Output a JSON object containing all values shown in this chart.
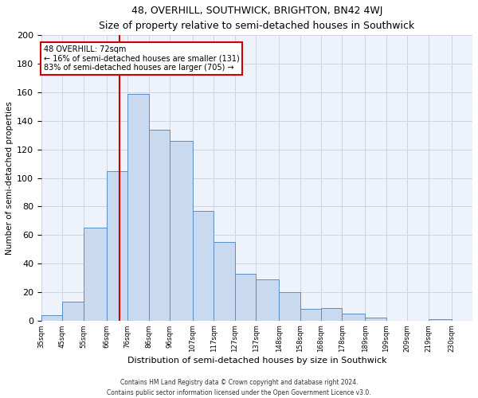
{
  "title": "48, OVERHILL, SOUTHWICK, BRIGHTON, BN42 4WJ",
  "subtitle": "Size of property relative to semi-detached houses in Southwick",
  "xlabel": "Distribution of semi-detached houses by size in Southwick",
  "ylabel": "Number of semi-detached properties",
  "footer1": "Contains HM Land Registry data © Crown copyright and database right 2024.",
  "footer2": "Contains public sector information licensed under the Open Government Licence v3.0.",
  "annotation_title": "48 OVERHILL: 72sqm",
  "annotation_line1": "← 16% of semi-detached houses are smaller (131)",
  "annotation_line2": "83% of semi-detached houses are larger (705) →",
  "property_size": 72,
  "bin_edges": [
    35,
    45,
    55,
    66,
    76,
    86,
    96,
    107,
    117,
    127,
    137,
    148,
    158,
    168,
    178,
    189,
    199,
    209,
    219,
    230,
    240
  ],
  "bar_heights": [
    4,
    13,
    65,
    105,
    159,
    134,
    126,
    77,
    55,
    33,
    29,
    20,
    8,
    9,
    5,
    2,
    0,
    0,
    1,
    0
  ],
  "bar_color": "#c9d9f0",
  "bar_edge_color": "#5b8ec4",
  "line_color": "#cc0000",
  "annotation_box_color": "#cc0000",
  "grid_color": "#cdd5e8",
  "background_color": "#eef2fa",
  "ylim": [
    0,
    200
  ],
  "yticks": [
    0,
    20,
    40,
    60,
    80,
    100,
    120,
    140,
    160,
    180,
    200
  ]
}
